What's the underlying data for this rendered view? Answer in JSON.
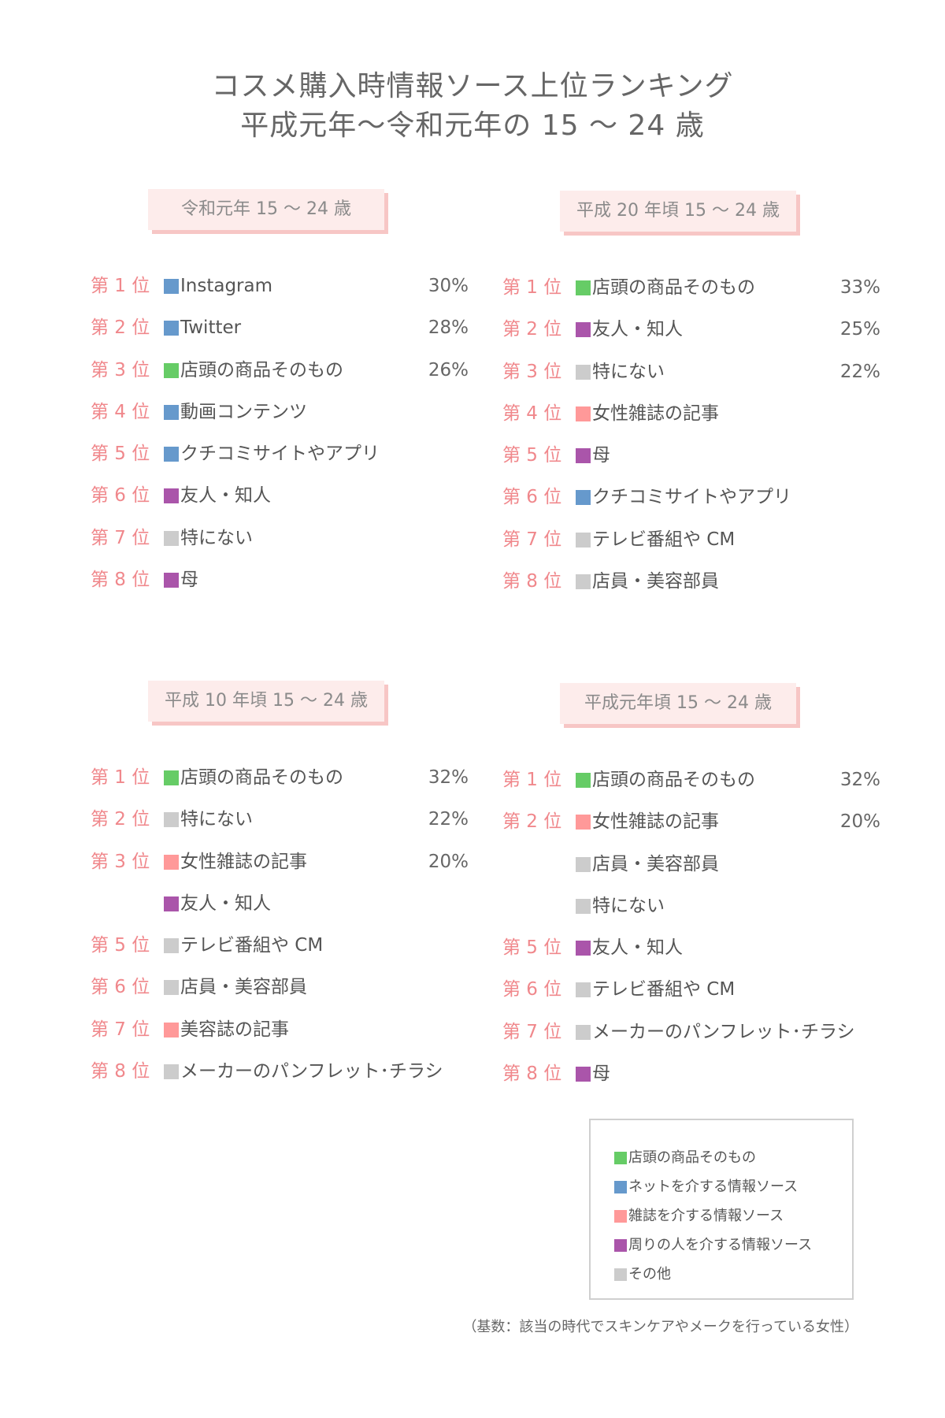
{
  "header": {
    "title_line1": "コスメ購入時情報ソース上位ランキング",
    "title_line2": "平成元年〜令和元年の 15 〜 24 歳"
  },
  "colors": {
    "store": "#66cc66",
    "net": "#6699cc",
    "magazine": "#ff9999",
    "people": "#aa55aa",
    "other": "#cccccc"
  },
  "panels": [
    {
      "label": "令和元年 15 〜 24 歳",
      "rows": [
        {
          "rank": "第 1 位",
          "category": "net",
          "item": "Instagram",
          "value": "30%"
        },
        {
          "rank": "第 2 位",
          "category": "net",
          "item": "Twitter",
          "value": "28%"
        },
        {
          "rank": "第 3 位",
          "category": "store",
          "item": "店頭の商品そのもの",
          "value": "26%"
        },
        {
          "rank": "第 4 位",
          "category": "net",
          "item": "動画コンテンツ",
          "value": ""
        },
        {
          "rank": "第 5 位",
          "category": "net",
          "item": "クチコミサイトやアプリ",
          "value": ""
        },
        {
          "rank": "第 6 位",
          "category": "people",
          "item": "友人・知人",
          "value": ""
        },
        {
          "rank": "第 7 位",
          "category": "other",
          "item": "特にない",
          "value": ""
        },
        {
          "rank": "第 8 位",
          "category": "people",
          "item": "母",
          "value": ""
        }
      ]
    },
    {
      "label": "平成 20 年頃 15 〜 24 歳",
      "rows": [
        {
          "rank": "第 1 位",
          "category": "store",
          "item": "店頭の商品そのもの",
          "value": "33%"
        },
        {
          "rank": "第 2 位",
          "category": "people",
          "item": "友人・知人",
          "value": "25%"
        },
        {
          "rank": "第 3 位",
          "category": "other",
          "item": "特にない",
          "value": "22%"
        },
        {
          "rank": "第 4 位",
          "category": "magazine",
          "item": "女性雑誌の記事",
          "value": ""
        },
        {
          "rank": "第 5 位",
          "category": "people",
          "item": "母",
          "value": ""
        },
        {
          "rank": "第 6 位",
          "category": "net",
          "item": "クチコミサイトやアプリ",
          "value": ""
        },
        {
          "rank": "第 7 位",
          "category": "other",
          "item": "テレビ番組や CM",
          "value": ""
        },
        {
          "rank": "第 8 位",
          "category": "other",
          "item": "店員・美容部員",
          "value": ""
        }
      ]
    },
    {
      "label": "平成 10 年頃 15 〜 24 歳",
      "rows": [
        {
          "rank": "第 1 位",
          "category": "store",
          "item": "店頭の商品そのもの",
          "value": "32%"
        },
        {
          "rank": "第 2 位",
          "category": "other",
          "item": "特にない",
          "value": "22%"
        },
        {
          "rank": "第 3 位",
          "category": "magazine",
          "item": "女性雑誌の記事",
          "value": "20%"
        },
        {
          "rank": "",
          "category": "people",
          "item": "友人・知人",
          "value": ""
        },
        {
          "rank": "第 5 位",
          "category": "other",
          "item": "テレビ番組や CM",
          "value": ""
        },
        {
          "rank": "第 6 位",
          "category": "other",
          "item": "店員・美容部員",
          "value": ""
        },
        {
          "rank": "第 7 位",
          "category": "magazine",
          "item": "美容誌の記事",
          "value": ""
        },
        {
          "rank": "第 8 位",
          "category": "other",
          "item": "メーカーのパンフレット･チラシ",
          "value": ""
        }
      ]
    },
    {
      "label": "平成元年頃 15 〜 24 歳",
      "rows": [
        {
          "rank": "第 1 位",
          "category": "store",
          "item": "店頭の商品そのもの",
          "value": "32%"
        },
        {
          "rank": "第 2 位",
          "category": "magazine",
          "item": "女性雑誌の記事",
          "value": "20%"
        },
        {
          "rank": "",
          "category": "other",
          "item": "店員・美容部員",
          "value": ""
        },
        {
          "rank": "",
          "category": "other",
          "item": "特にない",
          "value": ""
        },
        {
          "rank": "第 5 位",
          "category": "people",
          "item": "友人・知人",
          "value": ""
        },
        {
          "rank": "第 6 位",
          "category": "other",
          "item": "テレビ番組や CM",
          "value": ""
        },
        {
          "rank": "第 7 位",
          "category": "other",
          "item": "メーカーのパンフレット･チラシ",
          "value": ""
        },
        {
          "rank": "第 8 位",
          "category": "people",
          "item": "母",
          "value": ""
        }
      ]
    }
  ],
  "legend": [
    {
      "category": "store",
      "text": "店頭の商品そのもの"
    },
    {
      "category": "net",
      "text": "ネットを介する情報ソース"
    },
    {
      "category": "magazine",
      "text": "雑誌を介する情報ソース"
    },
    {
      "category": "people",
      "text": "周りの人を介する情報ソース"
    },
    {
      "category": "other",
      "text": "その他"
    }
  ],
  "footnote": "（基数：該当の時代でスキンケアやメークを行っている女性）"
}
